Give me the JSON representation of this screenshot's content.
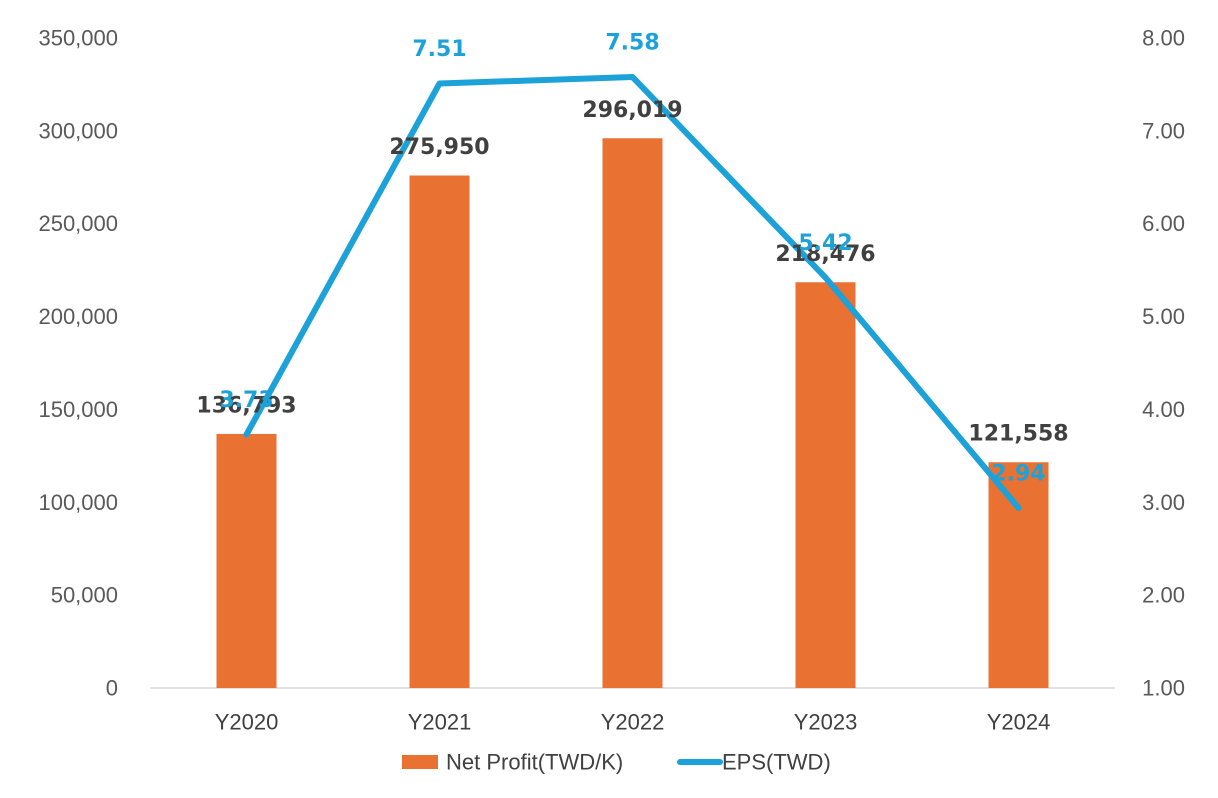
{
  "chart_data": {
    "type": "bar",
    "categories": [
      "Y2020",
      "Y2021",
      "Y2022",
      "Y2023",
      "Y2024"
    ],
    "series": [
      {
        "name": "Net Profit(TWD/K)",
        "type": "bar",
        "axis": "left",
        "values": [
          136793,
          275950,
          296019,
          218476,
          121558
        ],
        "labels": [
          "136,793",
          "275,950",
          "296,019",
          "218,476",
          "121,558"
        ]
      },
      {
        "name": "EPS(TWD)",
        "type": "line",
        "axis": "right",
        "values": [
          3.73,
          7.51,
          7.58,
          5.42,
          2.94
        ],
        "labels": [
          "3.73",
          "7.51",
          "7.58",
          "5.42",
          "2.94"
        ]
      }
    ],
    "y_left": {
      "ylim": [
        0,
        350000
      ],
      "ticks": [
        0,
        50000,
        100000,
        150000,
        200000,
        250000,
        300000,
        350000
      ],
      "tick_labels": [
        "0",
        "50,000",
        "100,000",
        "150,000",
        "200,000",
        "250,000",
        "300,000",
        "350,000"
      ]
    },
    "y_right": {
      "ylim": [
        1.0,
        8.0
      ],
      "ticks": [
        1,
        2,
        3,
        4,
        5,
        6,
        7,
        8
      ],
      "tick_labels": [
        "1.00",
        "2.00",
        "3.00",
        "4.00",
        "5.00",
        "6.00",
        "7.00",
        "8.00"
      ]
    },
    "legend": {
      "position": "bottom"
    },
    "grid": false,
    "colors": {
      "bar": "#E97132",
      "line": "#1CA2D8"
    }
  }
}
